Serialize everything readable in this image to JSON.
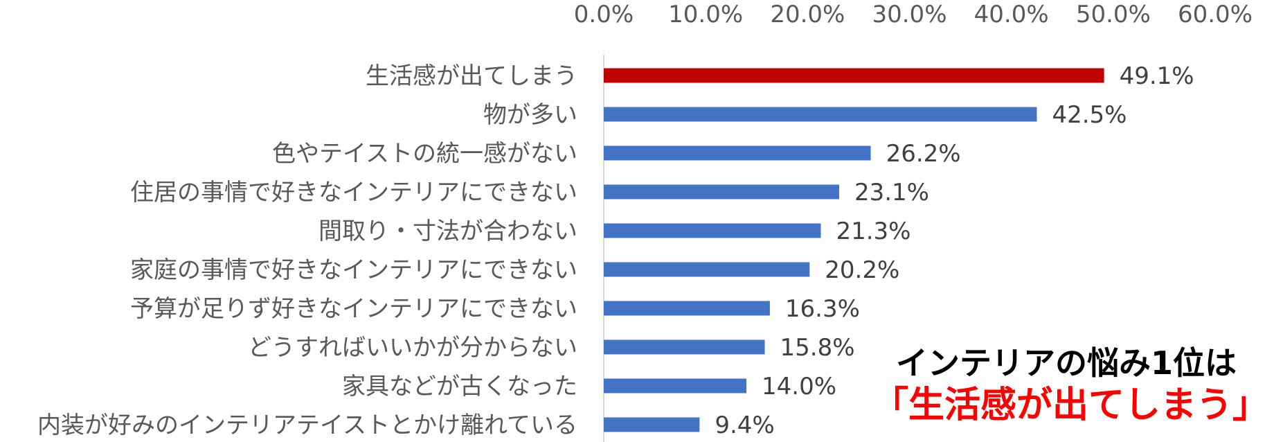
{
  "chart_data": {
    "type": "bar",
    "orientation": "horizontal",
    "categories": [
      "生活感が出てしまう",
      "物が多い",
      "色やテイストの統一感がない",
      "住居の事情で好きなインテリアにできない",
      "間取り・寸法が合わない",
      "家庭の事情で好きなインテリアにできない",
      "予算が足りず好きなインテリアにできない",
      "どうすればいいかが分からない",
      "家具などが古くなった",
      "内装が好みのインテリアテイストとかけ離れている"
    ],
    "values": [
      49.1,
      42.5,
      26.2,
      23.1,
      21.3,
      20.2,
      16.3,
      15.8,
      14.0,
      9.4
    ],
    "value_labels": [
      "49.1%",
      "42.5%",
      "26.2%",
      "23.1%",
      "21.3%",
      "20.2%",
      "16.3%",
      "15.8%",
      "14.0%",
      "9.4%"
    ],
    "xlim": [
      0,
      60
    ],
    "x_ticks": [
      "0.0%",
      "10.0%",
      "20.0%",
      "30.0%",
      "40.0%",
      "50.0%",
      "60.0%"
    ],
    "axis_position": "top",
    "grid": false,
    "highlight_index": 0,
    "highlight_color": "#c00000",
    "bar_color": "#4472c4"
  },
  "callout": {
    "line1": "インテリアの悩み1位は",
    "line2": "「生活感が出てしまう」"
  }
}
